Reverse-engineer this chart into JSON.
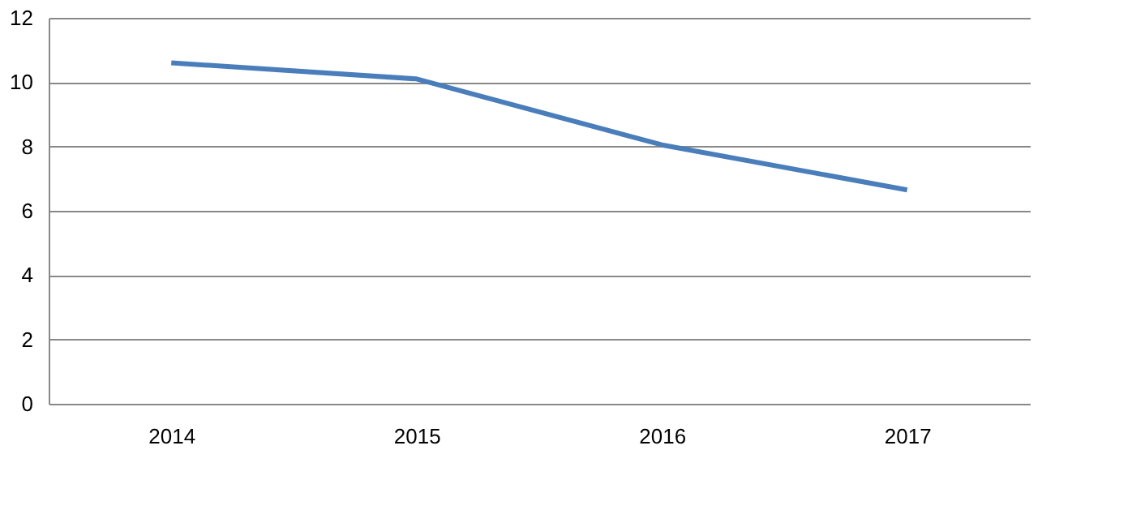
{
  "chart_data": {
    "type": "line",
    "categories": [
      "2014",
      "2015",
      "2016",
      "2017"
    ],
    "series": [
      {
        "color": "#4a7ebb",
        "values": [
          10.6,
          10.1,
          8.05,
          6.65
        ]
      }
    ],
    "ylim": [
      0,
      12
    ],
    "yticks": [
      0,
      2,
      4,
      6,
      8,
      10,
      12
    ],
    "grid": "y",
    "marker": "none",
    "line_style": "solid"
  }
}
